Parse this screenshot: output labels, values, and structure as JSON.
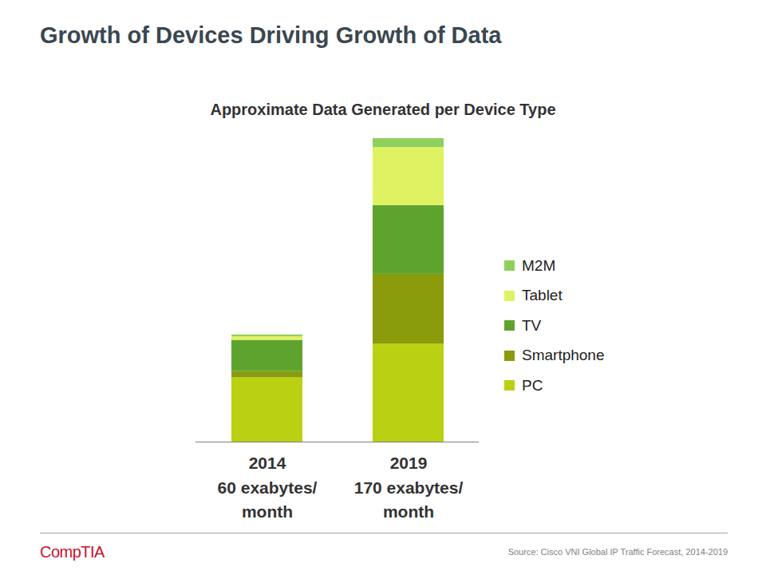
{
  "header": {
    "title": "Growth of Devices Driving Growth of Data"
  },
  "chart_data": {
    "type": "bar",
    "title": "Approximate Data Generated per Device Type",
    "categories": [
      "2014\n60 exabytes/\nmonth",
      "2019\n170 exabytes/\nmonth"
    ],
    "series": [
      {
        "name": "PC",
        "color": "#bad113",
        "values": [
          36,
          55
        ]
      },
      {
        "name": "Smartphone",
        "color": "#8a9b0c",
        "values": [
          3.5,
          39
        ]
      },
      {
        "name": "TV",
        "color": "#5ea32e",
        "values": [
          17.5,
          38.5
        ]
      },
      {
        "name": "Tablet",
        "color": "#dff262",
        "values": [
          2,
          32.5
        ]
      },
      {
        "name": "M2M",
        "color": "#8fd05c",
        "values": [
          1,
          5
        ]
      }
    ],
    "stacked": true,
    "ylim": [
      0,
      170
    ],
    "yticks": [],
    "grid": false,
    "tick_labels": "x",
    "legend": "right",
    "data_labels": false
  },
  "footer": {
    "logo": "CompTIA",
    "source": "Source: Cisco VNI Global IP Traffic Forecast, 2014-2019"
  }
}
